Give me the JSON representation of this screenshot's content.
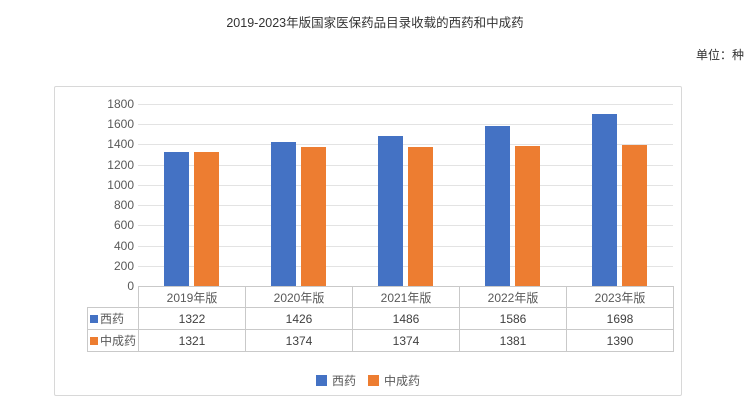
{
  "title": "2019-2023年版国家医保药品目录收载的西药和中成药",
  "unit_label": "单位：种",
  "chart_data": {
    "type": "bar",
    "title": "2019-2023年版国家医保药品目录收载的西药和中成药",
    "categories": [
      "2019年版",
      "2020年版",
      "2021年版",
      "2022年版",
      "2023年版"
    ],
    "series": [
      {
        "name": "西药",
        "color": "#4472C4",
        "values": [
          1322,
          1426,
          1486,
          1586,
          1698
        ]
      },
      {
        "name": "中成药",
        "color": "#ED7D31",
        "values": [
          1321,
          1374,
          1374,
          1381,
          1390
        ]
      }
    ],
    "xlabel": "",
    "ylabel": "",
    "ylim": [
      0,
      1800
    ],
    "yticks": [
      0,
      200,
      400,
      600,
      800,
      1000,
      1200,
      1400,
      1600,
      1800
    ],
    "grid": true,
    "legend_position": "bottom",
    "data_table_shown": true
  },
  "colors": {
    "grid": "#e3e3e3",
    "table_border": "#c9c9c9",
    "frame_border": "#d8d8d8",
    "axis_text": "#595959",
    "title_text": "#333333"
  }
}
